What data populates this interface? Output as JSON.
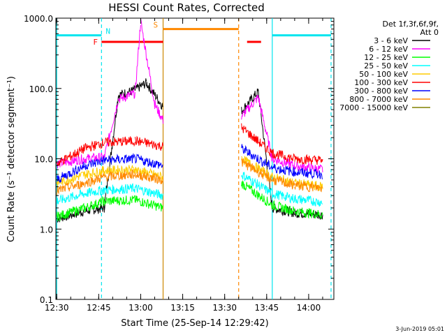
{
  "chart_data": {
    "type": "line",
    "title": "HESSI Count Rates, Corrected",
    "xlabel": "Start Time (25-Sep-14 12:29:42)",
    "ylabel": "Count Rate (s⁻¹ detector segment⁻¹)",
    "y_scale": "log",
    "ylim": [
      0.1,
      1000.0
    ],
    "xlim": [
      "12:29:42",
      "14:09:00"
    ],
    "x_ticks": [
      "12:30",
      "12:45",
      "13:00",
      "13:15",
      "13:30",
      "13:45",
      "14:00"
    ],
    "y_ticks": [
      "0.1",
      "1.0",
      "10.0",
      "100.0",
      "1000.0"
    ],
    "legend_position": "top-right",
    "legend_header": [
      "Det 1f,3f,6f,9f,",
      "Att 0"
    ],
    "footer_date": "3-Jun-2019 05:01",
    "series": [
      {
        "name": "3 - 6 keV",
        "color": "#000000",
        "x": [
          "12:30",
          "12:40",
          "12:47",
          "12:52",
          "12:58",
          "13:02",
          "13:08",
          "13:36",
          "13:42",
          "13:47",
          "13:55",
          "14:05"
        ],
        "y": [
          1.4,
          1.8,
          2.0,
          80,
          95,
          120,
          55,
          48,
          90,
          2.0,
          1.7,
          1.6
        ]
      },
      {
        "name": "6 - 12 keV",
        "color": "#ff00ff",
        "x": [
          "12:30",
          "12:40",
          "12:47",
          "12:52",
          "12:58",
          "13:00",
          "13:05",
          "13:08",
          "13:36",
          "13:42",
          "13:47",
          "13:55",
          "14:05"
        ],
        "y": [
          8.5,
          10,
          10.5,
          70,
          85,
          900,
          60,
          35,
          40,
          75,
          10,
          8,
          7
        ]
      },
      {
        "name": "12 - 25 keV",
        "color": "#00ff00",
        "x": [
          "12:30",
          "12:40",
          "12:47",
          "12:58",
          "13:08",
          "13:36",
          "13:47",
          "13:55",
          "14:05"
        ],
        "y": [
          1.5,
          2.0,
          2.5,
          2.6,
          2.0,
          4.5,
          2.2,
          1.8,
          1.6
        ]
      },
      {
        "name": "25 - 50 keV",
        "color": "#00ffff",
        "x": [
          "12:30",
          "12:40",
          "12:47",
          "12:58",
          "13:08",
          "13:36",
          "13:47",
          "13:55",
          "14:05"
        ],
        "y": [
          2.5,
          3.2,
          3.6,
          3.8,
          3.0,
          6.0,
          3.2,
          2.7,
          2.4
        ]
      },
      {
        "name": "50 - 100 keV",
        "color": "#ffcc00",
        "x": [
          "12:30",
          "12:40",
          "12:47",
          "12:58",
          "13:08",
          "13:36",
          "13:47",
          "13:55",
          "14:05"
        ],
        "y": [
          4.5,
          6.0,
          6.8,
          7.0,
          5.5,
          10,
          5.5,
          4.5,
          4.0
        ]
      },
      {
        "name": "100 - 300 keV",
        "color": "#ff0000",
        "x": [
          "12:30",
          "12:40",
          "12:47",
          "12:58",
          "13:08",
          "13:36",
          "13:47",
          "13:55",
          "14:05"
        ],
        "y": [
          8.5,
          14,
          17,
          18,
          15,
          28,
          12,
          10,
          9.5
        ]
      },
      {
        "name": "300 - 800 keV",
        "color": "#0000ff",
        "x": [
          "12:30",
          "12:40",
          "12:47",
          "12:58",
          "13:08",
          "13:36",
          "13:47",
          "13:55",
          "14:05"
        ],
        "y": [
          5.0,
          8.0,
          9.5,
          10,
          8.0,
          14,
          7.5,
          6.5,
          6.0
        ]
      },
      {
        "name": "800 - 7000 keV",
        "color": "#ff8800",
        "x": [
          "12:30",
          "12:40",
          "12:47",
          "12:58",
          "13:08",
          "13:36",
          "13:47",
          "13:55",
          "14:05"
        ],
        "y": [
          3.5,
          4.5,
          5.5,
          6.0,
          5.0,
          9.0,
          5.0,
          4.2,
          3.8
        ]
      },
      {
        "name": "7000 - 15000 keV",
        "color": "#808000",
        "x": [],
        "y": []
      }
    ],
    "state_bars": [
      {
        "label": "N",
        "color": "#00e5ee",
        "segments": [
          [
            "12:30",
            "12:46"
          ],
          [
            "13:47",
            "14:08"
          ]
        ],
        "level": 570
      },
      {
        "label": "F",
        "color": "#ff0000",
        "segments": [
          [
            "12:46",
            "13:08"
          ],
          [
            "13:38",
            "13:43"
          ]
        ],
        "level": 460
      },
      {
        "label": "S",
        "color": "#ff8800",
        "segments": [
          [
            "13:08",
            "13:35"
          ]
        ],
        "level": 700
      }
    ],
    "vertical_markers": [
      {
        "x": "12:30",
        "color": "#00e5ee",
        "style": "solid"
      },
      {
        "x": "12:46",
        "color": "#00e5ee",
        "style": "dashed"
      },
      {
        "x": "13:08",
        "color": "#cc8800",
        "style": "solid"
      },
      {
        "x": "13:35",
        "color": "#ff8800",
        "style": "dashed"
      },
      {
        "x": "13:47",
        "color": "#00e5ee",
        "style": "solid"
      },
      {
        "x": "14:08",
        "color": "#00e5ee",
        "style": "dashed"
      }
    ]
  }
}
